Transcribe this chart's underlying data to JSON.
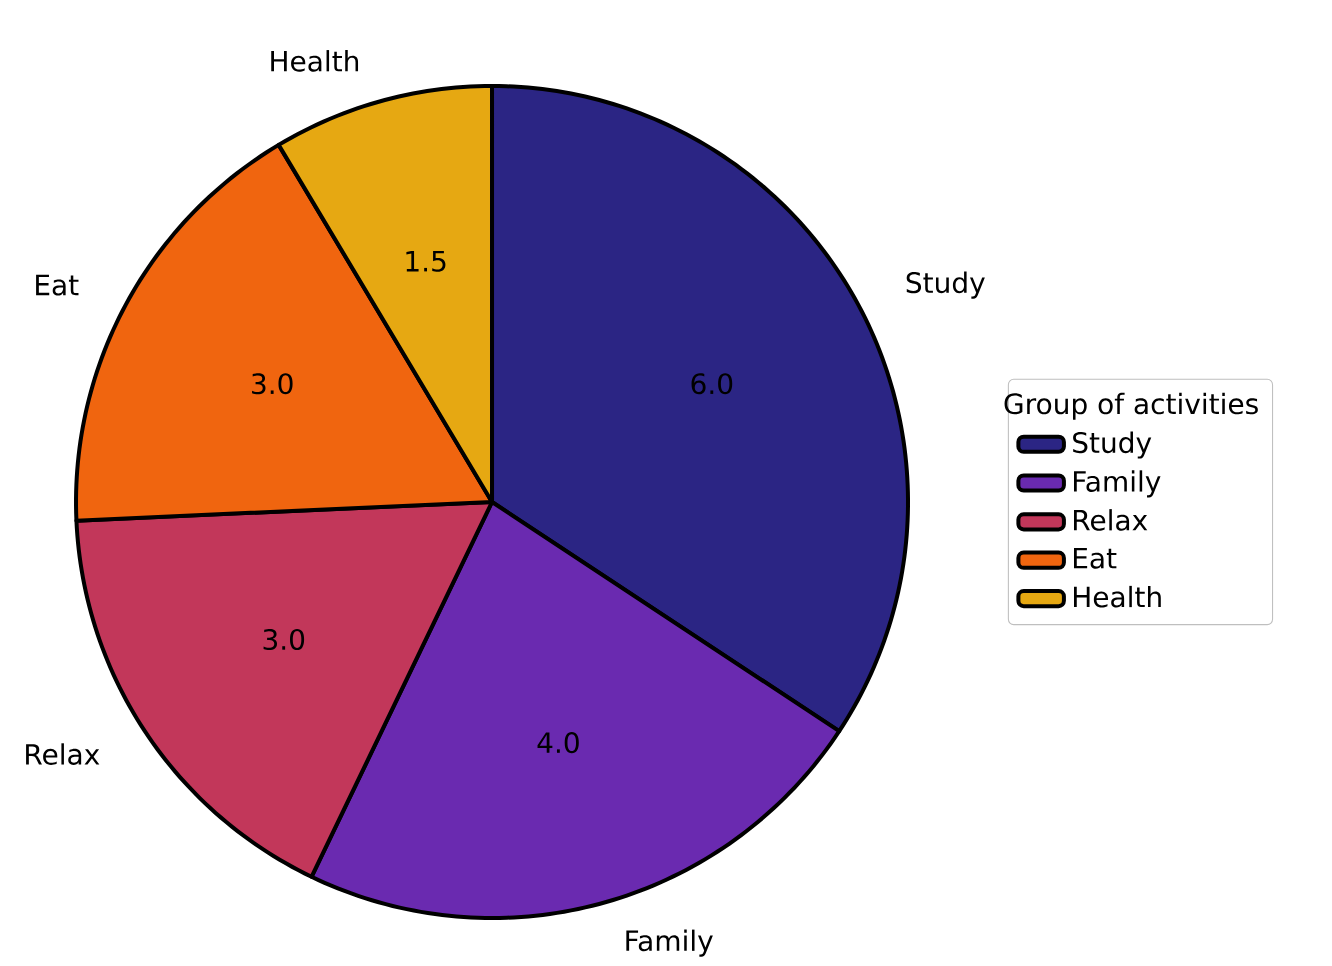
{
  "chart_data": {
    "type": "pie",
    "categories": [
      "Study",
      "Family",
      "Relax",
      "Eat",
      "Health"
    ],
    "values": [
      6,
      4,
      3,
      3,
      1.5
    ],
    "value_labels": [
      "6.0",
      "4.0",
      "3.0",
      "3.0",
      "1.5"
    ],
    "colors": [
      "#2b2584",
      "#6a2ab0",
      "#c2375a",
      "#f0650f",
      "#e6a812"
    ],
    "legend_title": "Group of activities",
    "legend": "right"
  }
}
